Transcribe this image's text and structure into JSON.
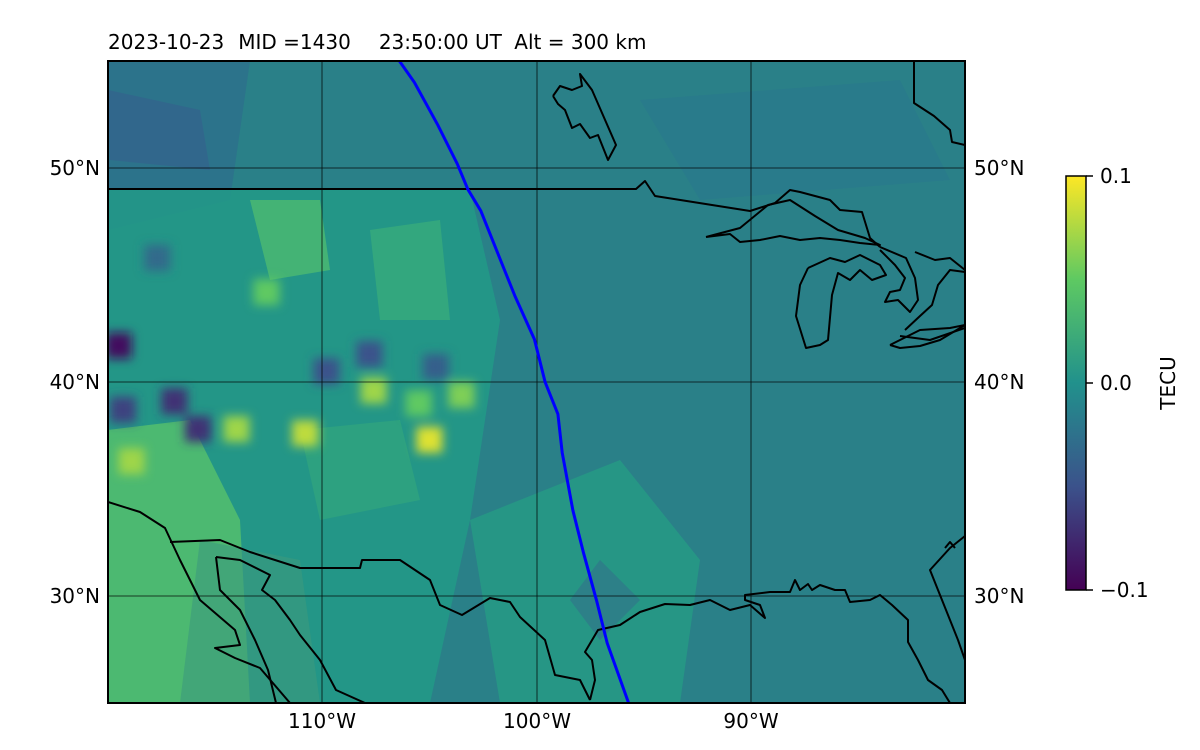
{
  "header": {
    "date": "2023-10-23",
    "mid": "MID =1430",
    "time": "23:50:00  UT",
    "alt": "Alt = 300 km"
  },
  "map": {
    "lat_labels": [
      "50°N",
      "40°N",
      "30°N"
    ],
    "lon_labels": [
      "110°W",
      "100°W",
      "90°W"
    ],
    "lon_range": [
      -120,
      -80
    ],
    "lat_range": [
      25,
      55
    ],
    "gridlines": true,
    "track_color": "#0000ff",
    "coast_color": "#000000"
  },
  "colorbar": {
    "label": "TECU",
    "ticks": [
      "0.1",
      "0.0",
      "−0.1"
    ],
    "min": -0.1,
    "max": 0.1,
    "colormap": "viridis",
    "colors": [
      "#440154",
      "#3b528b",
      "#21918c",
      "#5ec962",
      "#fde725"
    ]
  },
  "chart_data": {
    "type": "heatmap",
    "title": "2023-10-23  MID =1430    23:50:00  UT  Alt = 300 km",
    "xlabel": "",
    "ylabel": "",
    "x_ticks": [
      "110°W",
      "100°W",
      "90°W"
    ],
    "y_ticks": [
      "50°N",
      "40°N",
      "30°N"
    ],
    "xlim": [
      -120,
      -80
    ],
    "ylim": [
      25,
      55
    ],
    "colorbar": {
      "label": "TECU",
      "range": [
        -0.1,
        0.1
      ]
    },
    "background_value": 0.0,
    "anomalies": [
      {
        "lon": -119.5,
        "lat": 41.7,
        "value": -0.09
      },
      {
        "lon": -119.3,
        "lat": 38.7,
        "value": -0.06
      },
      {
        "lon": -116.9,
        "lat": 39.1,
        "value": -0.07
      },
      {
        "lon": -115.8,
        "lat": 37.8,
        "value": -0.07
      },
      {
        "lon": -109.8,
        "lat": 40.5,
        "value": -0.05
      },
      {
        "lon": -107.8,
        "lat": 41.3,
        "value": -0.05
      },
      {
        "lon": -104.7,
        "lat": 40.7,
        "value": -0.04
      },
      {
        "lon": -117.7,
        "lat": 45.8,
        "value": -0.03
      },
      {
        "lon": -118.9,
        "lat": 36.3,
        "value": 0.07
      },
      {
        "lon": -114.0,
        "lat": 37.8,
        "value": 0.07
      },
      {
        "lon": -110.8,
        "lat": 37.6,
        "value": 0.08
      },
      {
        "lon": -107.6,
        "lat": 39.6,
        "value": 0.07
      },
      {
        "lon": -105.5,
        "lat": 39.0,
        "value": 0.05
      },
      {
        "lon": -103.5,
        "lat": 39.4,
        "value": 0.06
      },
      {
        "lon": -105.0,
        "lat": 37.3,
        "value": 0.09
      },
      {
        "lon": -112.6,
        "lat": 44.2,
        "value": 0.05
      }
    ],
    "track": {
      "name": "",
      "points": [
        [
          -106.4,
          55.0
        ],
        [
          -105.7,
          54.0
        ],
        [
          -104.6,
          52.0
        ],
        [
          -103.7,
          50.2
        ],
        [
          -103.2,
          49.0
        ],
        [
          -102.6,
          48.0
        ],
        [
          -101.8,
          46.0
        ],
        [
          -101.0,
          44.0
        ],
        [
          -100.1,
          42.0
        ],
        [
          -99.6,
          40.0
        ],
        [
          -99.0,
          38.5
        ],
        [
          -98.8,
          36.7
        ],
        [
          -98.3,
          34.0
        ],
        [
          -97.8,
          32.0
        ],
        [
          -97.2,
          29.8
        ],
        [
          -96.7,
          27.8
        ],
        [
          -95.7,
          25.0
        ]
      ]
    }
  }
}
